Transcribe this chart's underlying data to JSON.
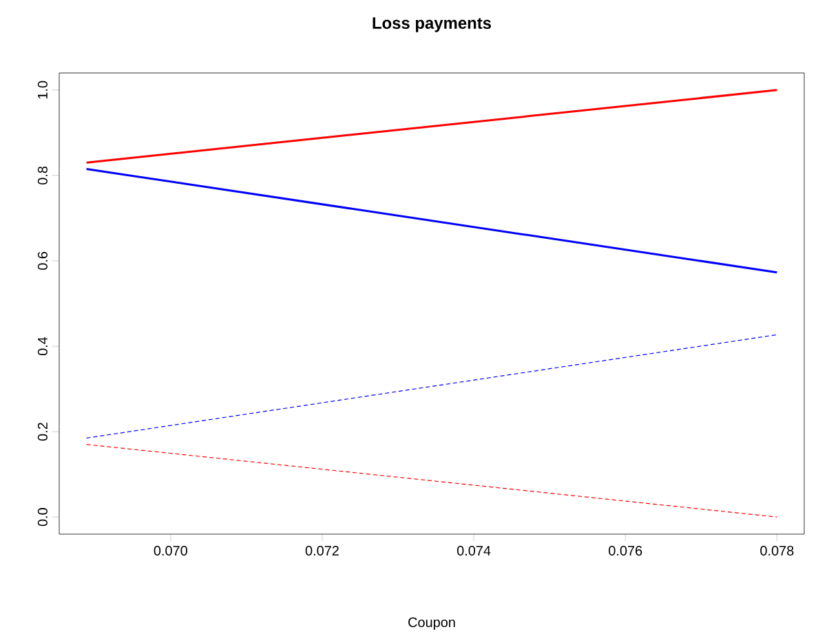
{
  "chart_data": {
    "type": "line",
    "title": "Loss payments",
    "xlabel": "Coupon",
    "x": [
      0.06889,
      0.078
    ],
    "series": [
      {
        "color": "#ff0000",
        "values": [
          0.83,
          1.0
        ],
        "line_style": "solid"
      },
      {
        "color": "#0000ff",
        "values": [
          0.815,
          0.573
        ],
        "line_style": "solid"
      },
      {
        "color": "#0000ff",
        "values": [
          0.185,
          0.427
        ],
        "line_style": "dashed"
      },
      {
        "color": "#ff0000",
        "values": [
          0.17,
          0.0
        ],
        "line_style": "dashed"
      }
    ],
    "xlim": [
      0.06853,
      0.07836
    ],
    "ylim": [
      -0.04,
      1.04
    ],
    "xticks": [
      {
        "value": 0.07,
        "label": "0.070"
      },
      {
        "value": 0.072,
        "label": "0.072"
      },
      {
        "value": 0.074,
        "label": "0.074"
      },
      {
        "value": 0.076,
        "label": "0.076"
      },
      {
        "value": 0.078,
        "label": "0.078"
      }
    ],
    "yticks": [
      {
        "value": 0.0,
        "label": "0.0"
      },
      {
        "value": 0.2,
        "label": "0.2"
      },
      {
        "value": 0.4,
        "label": "0.4"
      },
      {
        "value": 0.6,
        "label": "0.6"
      },
      {
        "value": 0.8,
        "label": "0.8"
      },
      {
        "value": 1.0,
        "label": "1.0"
      }
    ],
    "marker": "none"
  }
}
